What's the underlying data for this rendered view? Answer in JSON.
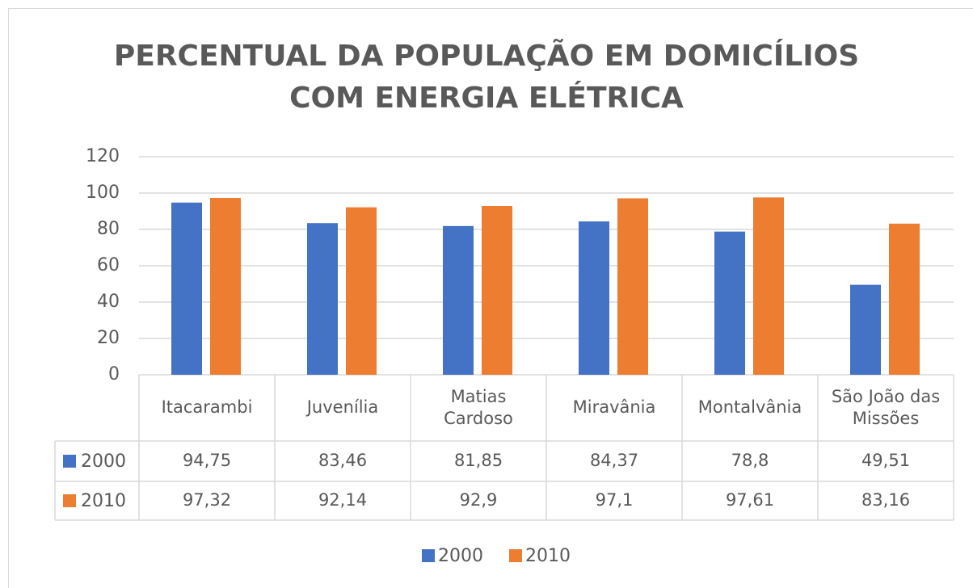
{
  "chart_data": {
    "type": "bar",
    "title": "PERCENTUAL DA POPULAÇÃO EM DOMICÍLIOS COM ENERGIA ELÉTRICA",
    "categories": [
      "Itacarambi",
      "Juvenília",
      "Matias Cardoso",
      "Miravânia",
      "Montalvânia",
      "São João das Missões"
    ],
    "series": [
      {
        "name": "2000",
        "color": "#4472c4",
        "values": [
          94.75,
          83.46,
          81.85,
          84.37,
          78.8,
          49.51
        ],
        "value_labels": [
          "94,75",
          "83,46",
          "81,85",
          "84,37",
          "78,8",
          "49,51"
        ]
      },
      {
        "name": "2010",
        "color": "#ed7d31",
        "values": [
          97.32,
          92.14,
          92.9,
          97.1,
          97.61,
          83.16
        ],
        "value_labels": [
          "97,32",
          "92,14",
          "92,9",
          "97,1",
          "97,61",
          "83,16"
        ]
      }
    ],
    "ylim": [
      0,
      120
    ],
    "yticks": [
      0,
      20,
      40,
      60,
      80,
      100,
      120
    ],
    "grid": true,
    "legend": "bottom",
    "data_table": true
  }
}
